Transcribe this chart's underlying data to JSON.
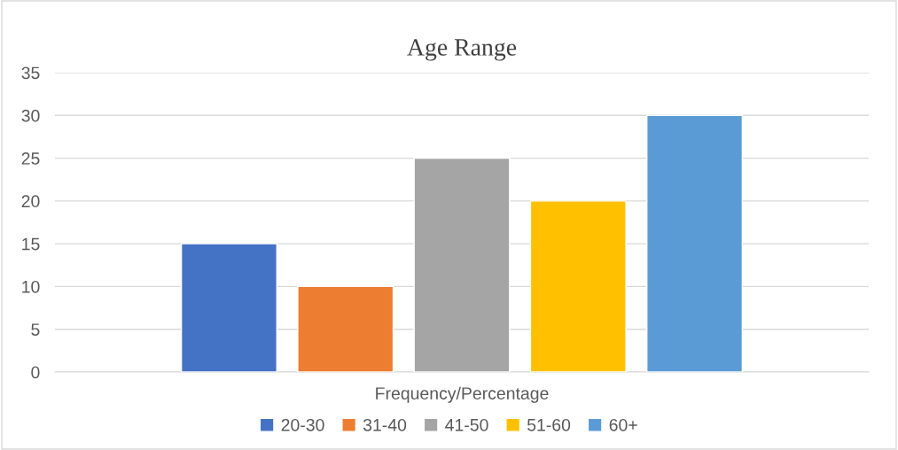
{
  "chart_data": {
    "type": "bar",
    "title": "Age Range",
    "categories": [
      "Frequency/Percentage"
    ],
    "series": [
      {
        "name": "20-30",
        "color": "#4472c4",
        "values": [
          15
        ]
      },
      {
        "name": "31-40",
        "color": "#ed7d31",
        "values": [
          10
        ]
      },
      {
        "name": "41-50",
        "color": "#a5a5a5",
        "values": [
          25
        ]
      },
      {
        "name": "51-60",
        "color": "#ffc000",
        "values": [
          20
        ]
      },
      {
        "name": "60+",
        "color": "#5b9bd5",
        "values": [
          30
        ]
      }
    ],
    "ylim": [
      0,
      35
    ],
    "yticks": [
      0,
      5,
      10,
      15,
      20,
      25,
      30,
      35
    ],
    "grid": "y",
    "legend": "bottom"
  }
}
